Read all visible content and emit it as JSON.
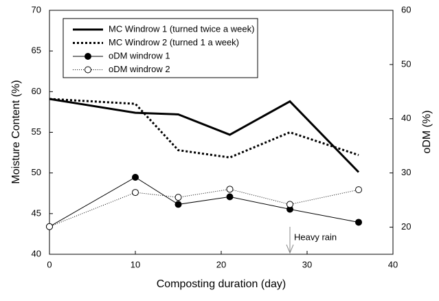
{
  "chart_data": {
    "type": "line",
    "x_label": "Composting duration (day)",
    "y_label": "Moisture Content (%)",
    "y2_label": "oDM (%)",
    "xlim": [
      0,
      40
    ],
    "xticks": [
      0,
      10,
      20,
      30,
      40
    ],
    "ylim": [
      40,
      70
    ],
    "yticks": [
      40,
      45,
      50,
      55,
      60,
      65,
      70
    ],
    "y2lim": [
      15,
      60
    ],
    "y2ticks": [
      20,
      30,
      40,
      50,
      60
    ],
    "legend": "upper left",
    "series": [
      {
        "name": "MC Windrow 1 (turned twice a week)",
        "color": "#000000",
        "style": "solid",
        "marker": "none",
        "x": [
          0,
          10,
          15,
          21,
          28,
          36
        ],
        "values": [
          59.1,
          57.4,
          57.2,
          54.7,
          58.8,
          50.1
        ]
      },
      {
        "name": "MC Windrow 2 (turned 1 a week)",
        "color": "#000000",
        "style": "dotted",
        "marker": "none",
        "x": [
          0,
          10,
          15,
          21,
          28,
          36
        ],
        "values": [
          59.1,
          58.5,
          52.8,
          51.9,
          55.0,
          52.2
        ]
      },
      {
        "name": "oDM windrow 1",
        "color": "#000000",
        "style": "thin",
        "marker": "filled",
        "axis": "y2",
        "x": [
          0,
          10,
          15,
          21,
          28,
          36
        ],
        "values": [
          20.1,
          29.2,
          24.2,
          25.6,
          23.3,
          20.9
        ]
      },
      {
        "name": "oDM windrow 2",
        "color": "#000000",
        "style": "thin-dotted",
        "marker": "open",
        "axis": "y2",
        "x": [
          0,
          10,
          15,
          21,
          28,
          36
        ],
        "values": [
          20.1,
          26.4,
          25.5,
          27.0,
          24.2,
          26.9
        ]
      }
    ],
    "annotations": [
      {
        "text": "Heavy rain",
        "x": 28
      }
    ]
  }
}
